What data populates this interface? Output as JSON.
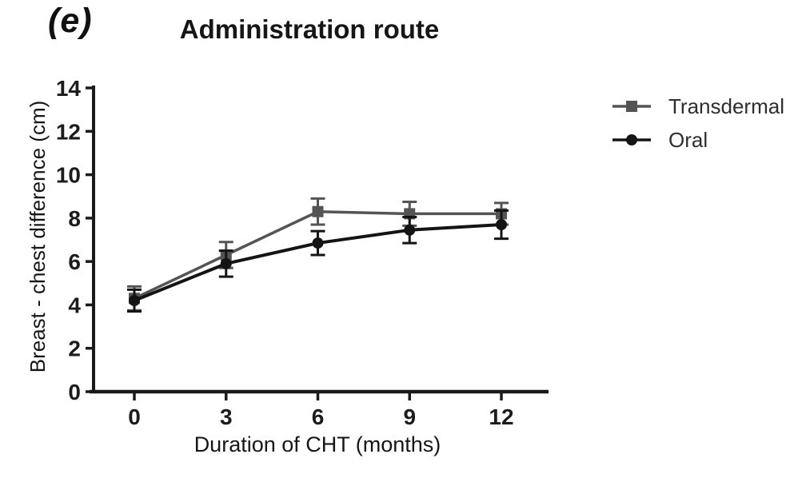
{
  "figure": {
    "panel_label": "(e)",
    "background": "#ffffff"
  },
  "chart_data": {
    "type": "line",
    "title": "Administration route",
    "panel_label": "(e)",
    "xlabel": "Duration of CHT (months)",
    "ylabel": "Breast - chest difference (cm)",
    "x": [
      0,
      3,
      6,
      9,
      12
    ],
    "x_tick_labels": [
      "0",
      "3",
      "6",
      "9",
      "12"
    ],
    "y_ticks": [
      0,
      2,
      4,
      6,
      8,
      10,
      12,
      14
    ],
    "ylim": [
      0,
      14
    ],
    "grid": false,
    "legend_position": "right",
    "axis_color": "#1a1a1a",
    "error_bars": true,
    "series": [
      {
        "name": "Transdermal",
        "marker": "square",
        "color": "#545454",
        "line_width": 3.5,
        "values": [
          4.3,
          6.3,
          8.3,
          8.2,
          8.2
        ],
        "errors": [
          0.55,
          0.6,
          0.6,
          0.55,
          0.5
        ]
      },
      {
        "name": "Oral",
        "marker": "circle",
        "color": "#141414",
        "line_width": 4,
        "values": [
          4.2,
          5.9,
          6.85,
          7.45,
          7.7
        ],
        "errors": [
          0.5,
          0.6,
          0.55,
          0.6,
          0.65
        ]
      }
    ]
  },
  "legend": {
    "items": [
      {
        "label": "Transdermal",
        "icon": "square-marker-line-icon"
      },
      {
        "label": "Oral",
        "icon": "circle-marker-line-icon"
      }
    ]
  }
}
